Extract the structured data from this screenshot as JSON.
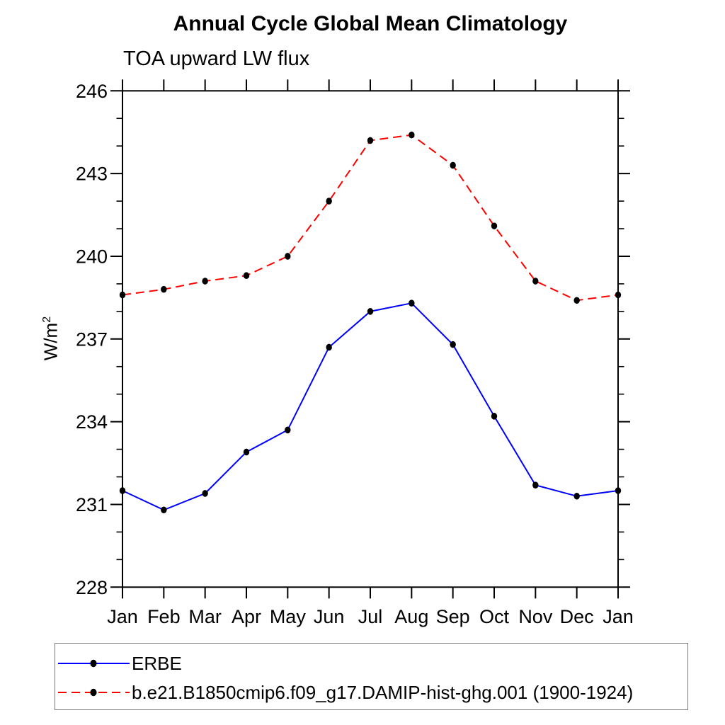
{
  "title": "Annual Cycle Global Mean Climatology",
  "subtitle": "TOA upward LW flux",
  "y_axis": {
    "base": "W/m",
    "sup": "2"
  },
  "legend": {
    "position": "bottom",
    "entries": [
      {
        "label": "ERBE",
        "color": "#0000ff",
        "line_style": "solid",
        "marker_color": "#000000"
      },
      {
        "label": "b.e21.B1850cmip6.f09_g17.DAMIP-hist-ghg.001 (1900-1924)",
        "color": "#ff0000",
        "line_style": "dashed",
        "marker_color": "#000000"
      }
    ]
  },
  "chart_data": {
    "type": "line",
    "title": "Annual Cycle Global Mean Climatology",
    "subtitle": "TOA upward LW flux",
    "xlabel": "",
    "ylabel": "W/m²",
    "categories": [
      "Jan",
      "Feb",
      "Mar",
      "Apr",
      "May",
      "Jun",
      "Jul",
      "Aug",
      "Sep",
      "Oct",
      "Nov",
      "Dec",
      "Jan"
    ],
    "series": [
      {
        "name": "ERBE",
        "color": "#0000ff",
        "line_style": "solid",
        "marker": "filled-circle",
        "marker_color": "#000000",
        "values": [
          231.5,
          230.8,
          231.4,
          232.9,
          233.7,
          236.7,
          238.0,
          238.3,
          236.8,
          234.2,
          231.7,
          231.3,
          231.5
        ]
      },
      {
        "name": "b.e21.B1850cmip6.f09_g17.DAMIP-hist-ghg.001 (1900-1924)",
        "color": "#ff0000",
        "line_style": "dashed",
        "marker": "filled-circle",
        "marker_color": "#000000",
        "values": [
          238.6,
          238.8,
          239.1,
          239.3,
          240.0,
          242.0,
          244.2,
          244.4,
          243.3,
          241.1,
          239.1,
          238.4,
          238.6
        ]
      }
    ],
    "ylim": [
      228,
      246
    ],
    "ytick_major": [
      228,
      231,
      234,
      237,
      240,
      243,
      246
    ],
    "ytick_minor_step": 1,
    "grid": false,
    "frame": "box-with-outward-ticks",
    "legend_position": "bottom"
  }
}
